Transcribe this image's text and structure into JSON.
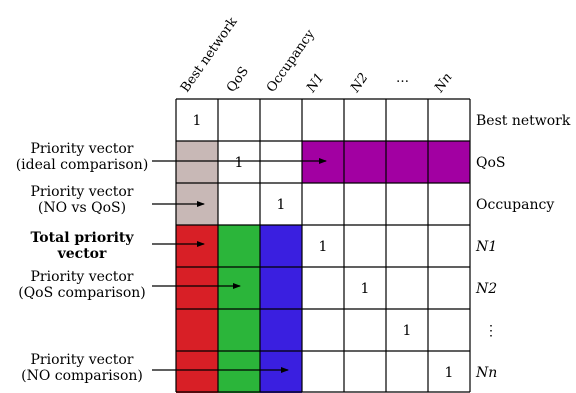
{
  "column_headers": [
    "Best network",
    "QoS",
    "Occupancy",
    "N1",
    "N2",
    "…",
    "Nn"
  ],
  "row_labels": [
    "Best network",
    "QoS",
    "Occupancy",
    "N1",
    "N2",
    "⋮",
    "Nn"
  ],
  "diagonal_value": "1",
  "left_annotations": [
    {
      "line1": "Priority vector",
      "line2": "(ideal comparison)"
    },
    {
      "line1": "Priority vector",
      "line2": "(NO vs QoS)"
    },
    {
      "line1": "Total priority",
      "line2": "vector"
    },
    {
      "line1": "Priority vector",
      "line2": "(QoS comparison)"
    },
    {
      "line1": "Priority vector",
      "line2": "(NO comparison)"
    }
  ],
  "colors": {
    "taupe": "#c8b8b6",
    "purple": "#a200a2",
    "red": "#d81f26",
    "green": "#2bb53a",
    "blue": "#3a1fe0",
    "grid": "#000000"
  }
}
